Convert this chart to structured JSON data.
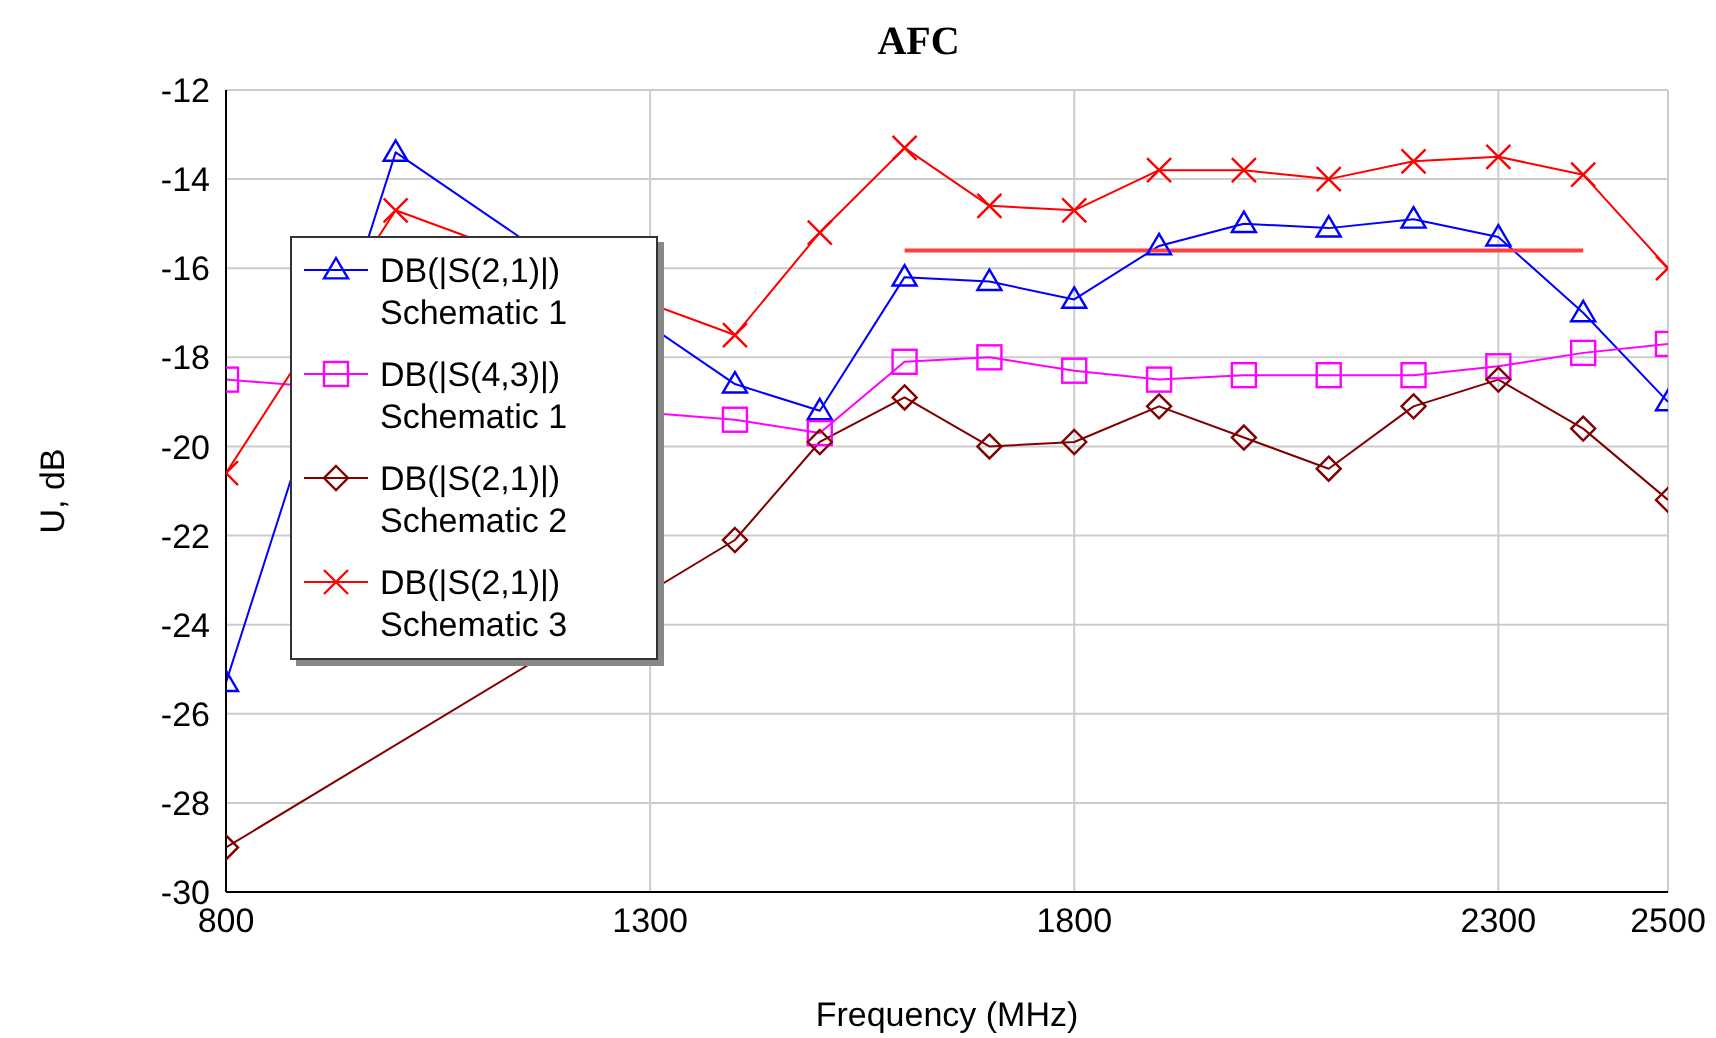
{
  "chart_data": {
    "type": "line",
    "title": "AFC",
    "xlabel": "Frequency (MHz)",
    "ylabel": "U, dB",
    "x": [
      800,
      900,
      1000,
      1100,
      1200,
      1300,
      1400,
      1500,
      1600,
      1700,
      1800,
      1900,
      2000,
      2100,
      2200,
      2300,
      2400,
      2500
    ],
    "xlim": [
      800,
      2500
    ],
    "xticks": [
      800,
      1300,
      1800,
      2300,
      2500
    ],
    "ylim": [
      -30,
      -12
    ],
    "yticks": [
      -30,
      -28,
      -26,
      -24,
      -22,
      -20,
      -18,
      -16,
      -14,
      -12
    ],
    "grid": true,
    "legend": "top left",
    "series": [
      {
        "name": "DB(|S(2,1)|) Schematic 1",
        "color": "#0000ff",
        "marker": "triangle",
        "values": [
          -25.3,
          null,
          -13.4,
          null,
          null,
          null,
          -18.6,
          -19.2,
          -16.2,
          -16.3,
          -16.7,
          -15.5,
          -15.0,
          -15.1,
          -14.9,
          -15.3,
          -17.0,
          -19.0
        ]
      },
      {
        "name": "DB(|S(4,3)|) Schematic 1",
        "color": "#ff00ff",
        "marker": "square",
        "values": [
          -18.5,
          null,
          null,
          null,
          null,
          null,
          -19.4,
          -19.7,
          -18.1,
          -18.0,
          -18.3,
          -18.5,
          -18.4,
          -18.4,
          -18.4,
          -18.2,
          -17.9,
          -17.7
        ]
      },
      {
        "name": "DB(|S(2,1)|) Schematic 2",
        "color": "#800000",
        "marker": "diamond",
        "values": [
          -29.0,
          null,
          null,
          null,
          null,
          null,
          -22.1,
          -19.9,
          -18.9,
          -20.0,
          -19.9,
          -19.1,
          -19.8,
          -20.5,
          -19.1,
          -18.5,
          -19.6,
          -21.2
        ]
      },
      {
        "name": "DB(|S(2,1)|) Schematic 3",
        "color": "#ff0000",
        "marker": "cross",
        "values": [
          -20.6,
          null,
          -14.7,
          null,
          null,
          null,
          -17.5,
          -15.2,
          -13.3,
          -14.6,
          -14.7,
          -13.8,
          -13.8,
          -14.0,
          -13.6,
          -13.5,
          -13.9,
          -16.0
        ]
      },
      {
        "type": "line",
        "color": "#ff4040",
        "marker": "none",
        "x": [
          1600,
          2400
        ],
        "values": [
          -15.6,
          -15.6
        ]
      }
    ]
  }
}
